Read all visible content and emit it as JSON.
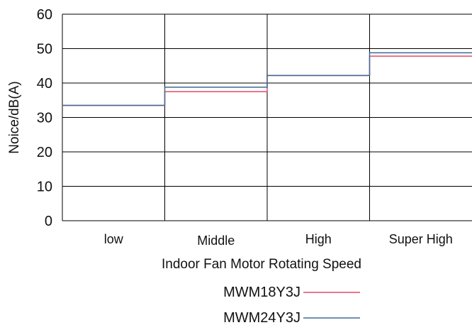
{
  "chart_data": {
    "type": "line",
    "xlabel": "Indoor Fan Motor Rotating Speed",
    "ylabel": "Noice/dB(A)",
    "categories": [
      "low",
      "Middle",
      "High",
      "Super High"
    ],
    "ylim": [
      0,
      60
    ],
    "yticks": [
      0,
      10,
      20,
      30,
      40,
      50,
      60
    ],
    "grid": true,
    "legend_position": "bottom",
    "series": [
      {
        "name": "MWM18Y3J",
        "color": "#e04a6a",
        "values": [
          33.5,
          37.5,
          42.2,
          47.8
        ]
      },
      {
        "name": "MWM24Y3J",
        "color": "#3f6a96",
        "values": [
          33.5,
          38.8,
          42.2,
          48.8
        ]
      }
    ]
  }
}
